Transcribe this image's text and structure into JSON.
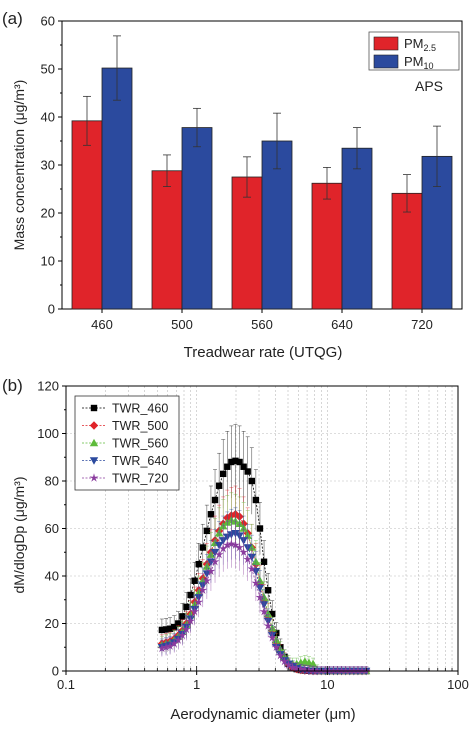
{
  "chart_data": [
    {
      "type": "bar",
      "panel_label": "(a)",
      "categories": [
        "460",
        "500",
        "560",
        "640",
        "720"
      ],
      "series": [
        {
          "name": "PM",
          "name_sub": "2.5",
          "color": "#e0242a",
          "values": [
            39.2,
            28.8,
            27.5,
            26.2,
            24.1
          ],
          "errors": [
            5.1,
            3.3,
            4.2,
            3.3,
            3.9
          ]
        },
        {
          "name": "PM",
          "name_sub": "10",
          "color": "#2b4a9e",
          "values": [
            50.2,
            37.8,
            35.0,
            33.5,
            31.8
          ],
          "errors": [
            6.7,
            4.0,
            5.8,
            4.3,
            6.3
          ]
        }
      ],
      "xlabel": "Treadwear rate (UTQG)",
      "ylabel": "Mass concentration (μg/m³)",
      "ylim": [
        0,
        60
      ],
      "yticks": [
        0,
        10,
        20,
        30,
        40,
        50,
        60
      ],
      "annotation": "APS",
      "legend": "top-right"
    },
    {
      "type": "scatter",
      "panel_label": "(b)",
      "xscale": "log",
      "xlim": [
        0.1,
        100
      ],
      "ylim": [
        0,
        120
      ],
      "xticks": [
        "0.1",
        "1",
        "10",
        "100"
      ],
      "yticks": [
        0,
        20,
        40,
        60,
        80,
        100,
        120
      ],
      "xlabel": "Aerodynamic diameter (μm)",
      "ylabel": "dM/dlogDp (μg/m³)",
      "grid": true,
      "legend": "top-left",
      "x": [
        0.542,
        0.583,
        0.626,
        0.673,
        0.723,
        0.777,
        0.835,
        0.898,
        0.965,
        1.037,
        1.114,
        1.197,
        1.286,
        1.382,
        1.486,
        1.596,
        1.715,
        1.843,
        1.981,
        2.129,
        2.288,
        2.458,
        2.642,
        2.839,
        3.051,
        3.278,
        3.523,
        3.786,
        4.068,
        4.371,
        4.698,
        5.048,
        5.425,
        5.829,
        6.264,
        6.732,
        7.234,
        7.774,
        8.354,
        8.977,
        9.647,
        10.37,
        11.14,
        11.97,
        12.86,
        13.82,
        14.86,
        15.96,
        17.15,
        18.43,
        19.81
      ],
      "series": [
        {
          "name": "TWR_460",
          "color": "#000000",
          "marker": "square",
          "values": [
            17.3,
            17.5,
            17.8,
            18.5,
            20,
            23,
            27,
            32,
            38,
            45,
            52,
            59,
            66,
            72,
            78,
            83,
            86,
            88,
            88.5,
            88,
            86,
            84,
            80,
            72,
            60,
            46,
            34,
            24,
            16,
            10,
            6,
            3,
            1.5,
            0.8,
            0.4,
            0.2,
            0.1,
            0,
            0,
            0,
            0,
            0,
            0,
            0,
            0,
            0,
            0,
            0,
            0,
            0,
            0
          ]
        },
        {
          "name": "TWR_500",
          "color": "#e0242a",
          "marker": "diamond",
          "values": [
            11.5,
            12,
            12.5,
            13.5,
            15,
            17,
            20,
            24,
            29,
            34,
            39,
            45,
            50,
            55,
            59,
            62,
            64.5,
            65.5,
            66,
            65,
            62,
            58,
            52,
            45,
            37,
            30,
            23,
            17,
            12,
            8,
            5,
            3,
            1.5,
            0.8,
            0.4,
            0.2,
            0.1,
            0,
            0,
            0,
            0,
            0,
            0,
            0,
            0,
            0,
            0,
            0,
            0,
            0,
            0
          ]
        },
        {
          "name": "TWR_560",
          "color": "#5dbb3a",
          "marker": "triangle-up",
          "values": [
            11,
            11.5,
            12,
            13,
            14.5,
            16.5,
            19.5,
            23.5,
            28,
            33,
            38,
            44,
            49,
            54,
            58,
            61,
            62.5,
            63.5,
            63,
            62,
            60,
            57,
            52,
            46,
            38,
            31,
            24,
            18,
            13,
            9,
            6,
            4,
            3,
            3,
            3.5,
            4,
            3.5,
            3,
            0.5,
            0,
            0,
            0,
            0,
            0,
            0,
            0,
            0,
            0,
            0,
            0,
            0
          ]
        },
        {
          "name": "TWR_640",
          "color": "#2b4a9e",
          "marker": "triangle-down",
          "values": [
            10,
            10.5,
            11,
            12,
            13.5,
            15.5,
            18.5,
            22,
            26,
            31,
            36,
            41,
            46,
            50,
            53,
            55,
            56.5,
            57.5,
            58,
            57,
            55,
            52,
            48,
            42,
            35,
            28,
            21,
            15,
            10,
            7,
            4.5,
            3,
            2,
            1.2,
            0.6,
            0.3,
            0.1,
            0,
            0,
            0,
            0,
            0,
            0,
            0,
            0,
            0,
            0,
            0,
            0,
            0,
            0
          ]
        },
        {
          "name": "TWR_720",
          "color": "#8a3b9e",
          "marker": "star",
          "values": [
            9.5,
            10,
            10.5,
            11.5,
            13,
            15,
            17.5,
            21,
            25,
            29,
            34,
            38,
            42,
            46,
            49,
            51.5,
            53,
            53.5,
            53,
            52,
            50,
            47,
            43,
            37,
            31,
            25,
            19,
            14,
            10,
            6.5,
            4,
            2.5,
            1.5,
            1,
            0.8,
            0.5,
            0.3,
            0.1,
            0,
            0,
            0,
            0,
            0,
            0,
            0,
            0,
            0,
            0,
            0,
            0,
            0
          ]
        }
      ]
    }
  ]
}
